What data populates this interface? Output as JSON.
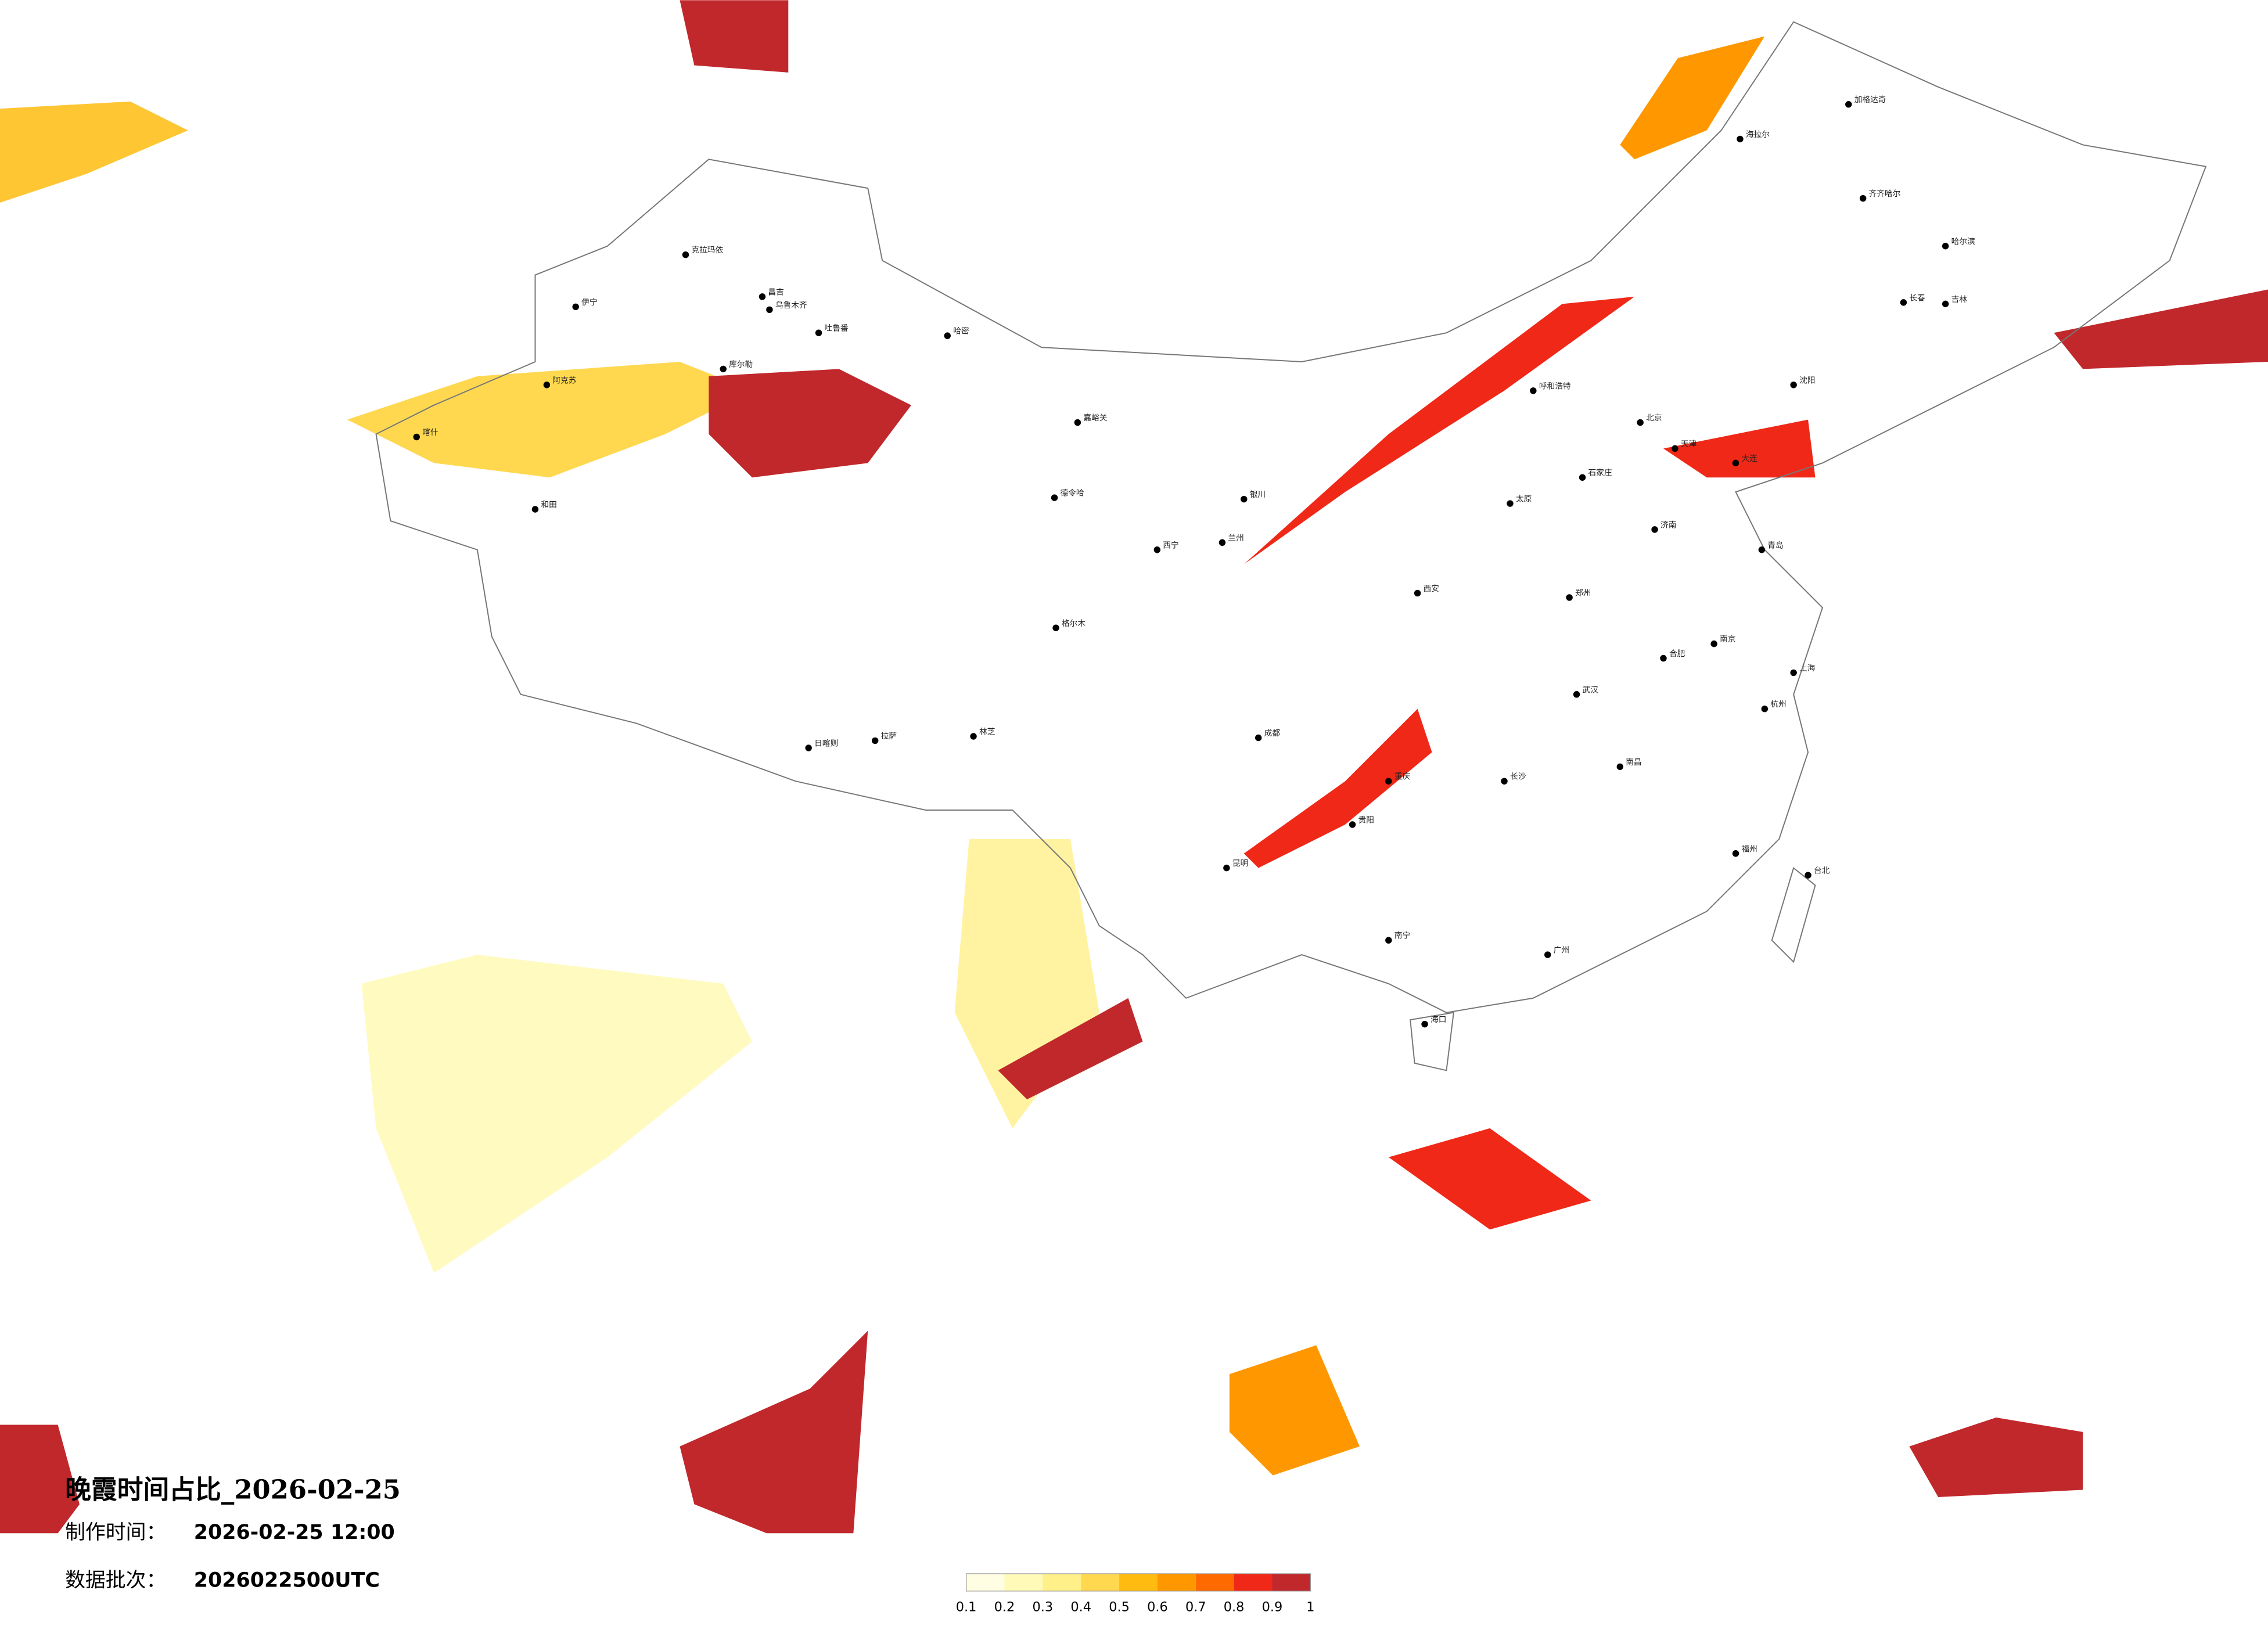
{
  "title": "晚霞时间占比_2026-02-25",
  "info": [
    {
      "label": "制作时间：",
      "value": "2026-02-25 12:00"
    },
    {
      "label": "数据批次：",
      "value": "2026022500UTC"
    }
  ],
  "colorbar": {
    "colors": [
      "#fffde2",
      "#fffab8",
      "#fff08a",
      "#ffd850",
      "#ffbb10",
      "#ff9800",
      "#ff6a00",
      "#f02818",
      "#c0282c"
    ],
    "ticks": [
      0.1,
      0.2,
      0.3,
      0.4,
      0.5,
      0.6,
      0.7,
      0.8,
      0.9,
      1
    ]
  },
  "cities": [
    "克拉玛依",
    "伊宁",
    "昌吉",
    "乌鲁木齐",
    "吐鲁番",
    "哈密",
    "库尔勒",
    "阿克苏",
    "喀什",
    "和田",
    "嘉峪关",
    "德令哈",
    "格尔木",
    "拉萨",
    "日喀则",
    "林芝",
    "海拉尔",
    "加格达奇",
    "齐齐哈尔",
    "哈尔滨",
    "长春",
    "吉林",
    "沈阳",
    "大连",
    "呼和浩特",
    "北京",
    "天津",
    "石家庄",
    "太原",
    "济南",
    "青岛",
    "郑州",
    "西安",
    "兰州",
    "西宁",
    "银川",
    "成都",
    "重庆",
    "贵阳",
    "昆明",
    "南宁",
    "海口",
    "长沙",
    "武汉",
    "南昌",
    "合肥",
    "南京",
    "上海",
    "杭州",
    "福州",
    "台北",
    "广州"
  ]
}
